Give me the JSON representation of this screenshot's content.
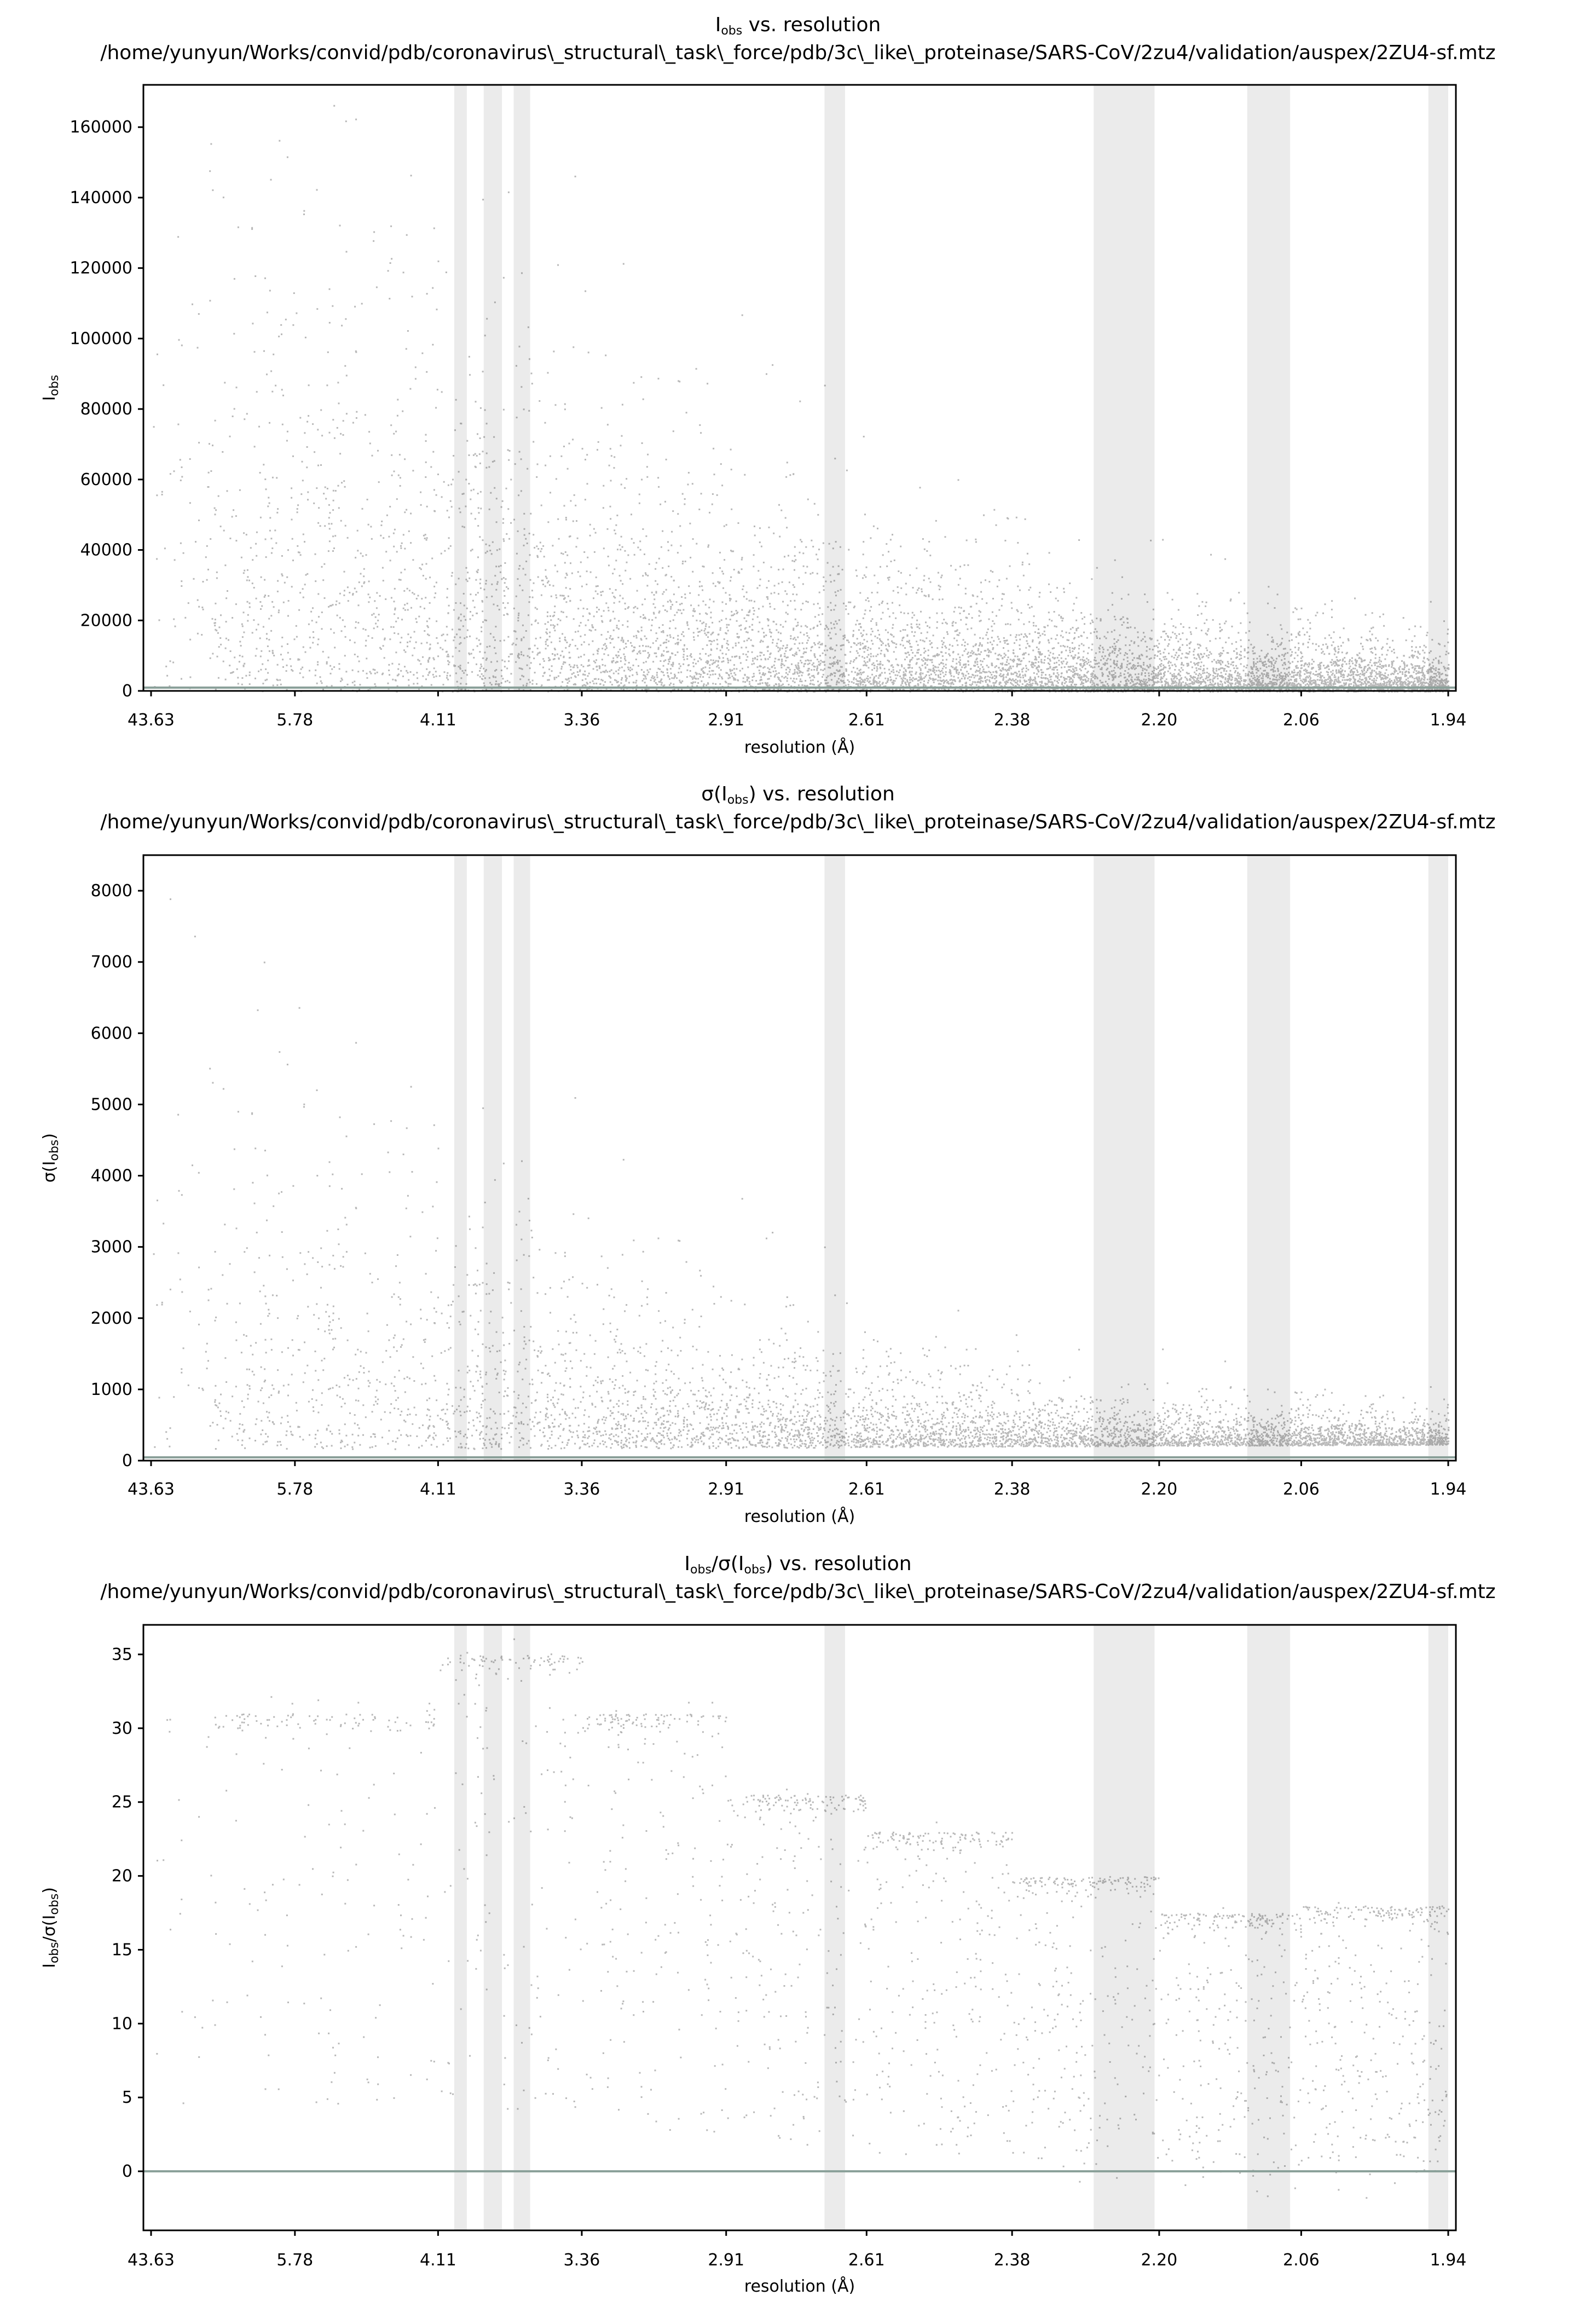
{
  "chart_data": [
    {
      "type": "scatter",
      "title_main": "I",
      "title_sub": "obs",
      "title_rest": " vs. resolution",
      "title_path": "/home/yunyun/Works/convid/pdb/coronavirus\\_structural\\_task\\_force/pdb/3c\\_like\\_proteinase/SARS-CoV/2zu4/validation/auspex/2ZU4-sf.mtz",
      "ylabel_main": "I",
      "ylabel_sub": "obs",
      "ylabel_post": "",
      "xlabel": "resolution (Å)",
      "x_ticks": [
        "43.63",
        "5.78",
        "4.11",
        "3.36",
        "2.91",
        "2.61",
        "2.38",
        "2.20",
        "2.06",
        "1.94"
      ],
      "y_ticks": [
        0,
        20000,
        40000,
        60000,
        80000,
        100000,
        120000,
        140000,
        160000
      ],
      "ylim": [
        0,
        172000
      ],
      "zero_line": false,
      "ice_rings": [
        [
          4.0,
          3.92
        ],
        [
          3.82,
          3.72
        ],
        [
          3.66,
          3.58
        ],
        [
          2.69,
          2.65
        ],
        [
          2.275,
          2.205
        ],
        [
          2.11,
          2.07
        ],
        [
          1.955,
          1.94
        ]
      ],
      "model": "intensity"
    },
    {
      "type": "scatter",
      "title_main": "σ(I",
      "title_sub": "obs",
      "title_rest": ") vs. resolution",
      "title_path": "/home/yunyun/Works/convid/pdb/coronavirus\\_structural\\_task\\_force/pdb/3c\\_like\\_proteinase/SARS-CoV/2zu4/validation/auspex/2ZU4-sf.mtz",
      "ylabel_main": "σ(I",
      "ylabel_sub": "obs",
      "ylabel_post": ")",
      "xlabel": "resolution (Å)",
      "x_ticks": [
        "43.63",
        "5.78",
        "4.11",
        "3.36",
        "2.91",
        "2.61",
        "2.38",
        "2.20",
        "2.06",
        "1.94"
      ],
      "y_ticks": [
        0,
        1000,
        2000,
        3000,
        4000,
        5000,
        6000,
        7000,
        8000
      ],
      "ylim": [
        0,
        8500
      ],
      "zero_line": false,
      "ice_rings": [
        [
          4.0,
          3.92
        ],
        [
          3.82,
          3.72
        ],
        [
          3.66,
          3.58
        ],
        [
          2.69,
          2.65
        ],
        [
          2.275,
          2.205
        ],
        [
          2.11,
          2.07
        ],
        [
          1.955,
          1.94
        ]
      ],
      "model": "sigma"
    },
    {
      "type": "scatter",
      "title_main": "I",
      "title_sub": "obs",
      "title_rest": "/σ(I",
      "title_sub2": "obs",
      "title_rest2": ") vs. resolution",
      "title_path": "/home/yunyun/Works/convid/pdb/coronavirus\\_structural\\_task\\_force/pdb/3c\\_like\\_proteinase/SARS-CoV/2zu4/validation/auspex/2ZU4-sf.mtz",
      "ylabel_main": "I",
      "ylabel_sub": "obs",
      "ylabel_post": "/σ(I",
      "ylabel_sub2": "obs",
      "ylabel_post2": ")",
      "xlabel": "resolution (Å)",
      "x_ticks": [
        "43.63",
        "5.78",
        "4.11",
        "3.36",
        "2.91",
        "2.61",
        "2.38",
        "2.20",
        "2.06",
        "1.94"
      ],
      "y_ticks": [
        0,
        5,
        10,
        15,
        20,
        25,
        30,
        35
      ],
      "ylim": [
        -4,
        37
      ],
      "zero_line": true,
      "ice_rings": [
        [
          4.0,
          3.92
        ],
        [
          3.82,
          3.72
        ],
        [
          3.66,
          3.58
        ],
        [
          2.69,
          2.65
        ],
        [
          2.275,
          2.205
        ],
        [
          2.11,
          2.07
        ],
        [
          1.955,
          1.94
        ]
      ],
      "steps": [
        {
          "x_from": "43.63",
          "x_to": "4.11",
          "level": 31
        },
        {
          "x_from": "4.11",
          "x_to": "3.36",
          "level": 35
        },
        {
          "x_from": "3.36",
          "x_to": "2.91",
          "level": 31
        },
        {
          "x_from": "2.91",
          "x_to": "2.61",
          "level": 25.5
        },
        {
          "x_from": "2.61",
          "x_to": "2.38",
          "level": 23
        },
        {
          "x_from": "2.38",
          "x_to": "2.20",
          "level": 20
        },
        {
          "x_from": "2.20",
          "x_to": "2.06",
          "level": 17.5
        },
        {
          "x_from": "2.06",
          "x_to": "1.94",
          "level": 18
        }
      ],
      "model": "ratio"
    }
  ]
}
